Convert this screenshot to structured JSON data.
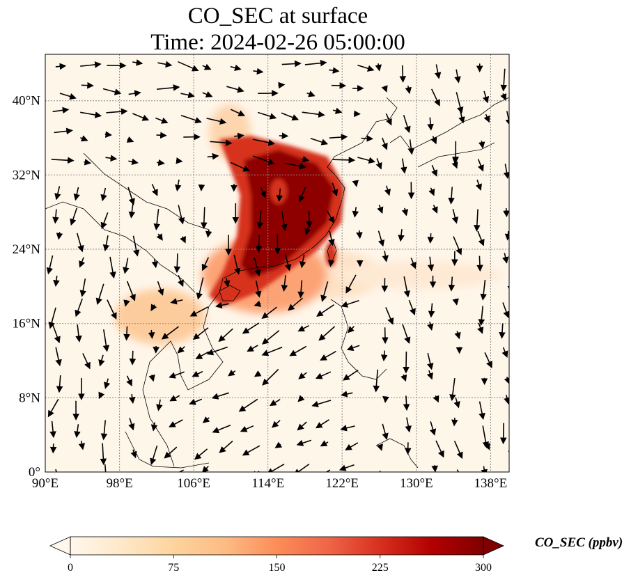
{
  "title_line1": "CO_SEC at surface",
  "title_line2": "Time: 2024-02-26 05:00:00",
  "map": {
    "lon_range": [
      90,
      140
    ],
    "lat_range": [
      0,
      45
    ],
    "lon_ticks": [
      "90°E",
      "98°E",
      "106°E",
      "114°E",
      "122°E",
      "130°E",
      "138°E"
    ],
    "lat_ticks": [
      "0°",
      "8°N",
      "16°N",
      "24°N",
      "32°N",
      "40°N"
    ],
    "gridlines": true,
    "wind_vectors_shown": true
  },
  "colorbar": {
    "label": "CO_SEC (ppbv)",
    "ticks": [
      "0",
      "75",
      "150",
      "225",
      "300"
    ],
    "range": [
      0,
      300
    ],
    "colormap": "OrRd",
    "extend": "both",
    "colors": [
      "#fff7ec",
      "#fee8c8",
      "#fdd49e",
      "#fdbb84",
      "#fc8d59",
      "#ef6548",
      "#d7301f",
      "#b30000",
      "#7f0000"
    ]
  }
}
